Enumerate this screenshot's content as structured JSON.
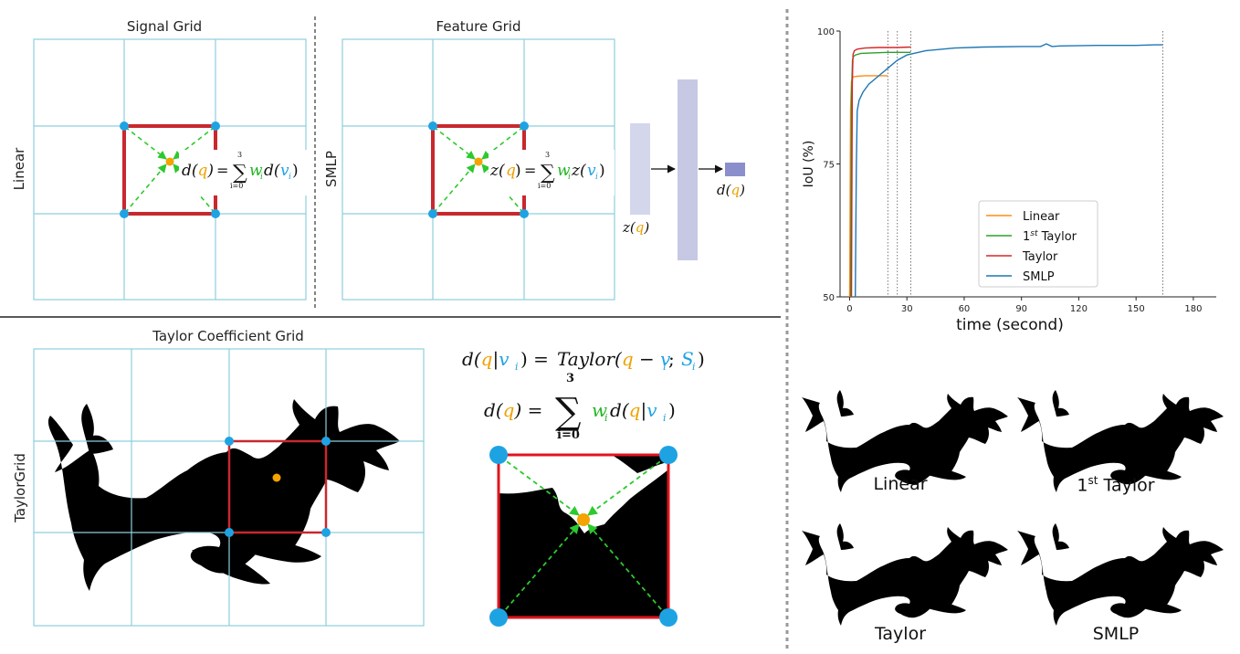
{
  "panels": {
    "signal_grid": {
      "title": "Signal Grid",
      "side_label": "Linear"
    },
    "feature_grid": {
      "title": "Feature Grid",
      "side_label": "SMLP",
      "mlp_input": "z",
      "mlp_output": "d"
    },
    "taylor_grid": {
      "title": "Taylor Coefficient Grid",
      "side_label": "TaylorGrid"
    }
  },
  "formulas": {
    "linear": {
      "lhs": "d",
      "arg": "q",
      "sum_top": "3",
      "sum_bottom": "i=0",
      "weight": "w",
      "sub": "i",
      "fn": "d",
      "var": "v"
    },
    "smlp": {
      "lhs": "z",
      "arg": "q",
      "sum_top": "3",
      "sum_bottom": "i=0",
      "weight": "w",
      "sub": "i",
      "fn": "z",
      "var": "v"
    },
    "taylor_line1": {
      "lhs": "d",
      "q": "q",
      "v": "v",
      "sub": "i",
      "rhs": "Taylor",
      "s": "S"
    },
    "taylor_line2": {
      "lhs": "d",
      "q": "q",
      "sum_top": "3",
      "sum_bottom": "i=0",
      "w": "w",
      "sub": "i",
      "fn": "d",
      "v": "v"
    }
  },
  "chart_data": {
    "type": "line",
    "xlabel": "time (second)",
    "ylabel": "IoU (%)",
    "xlim": [
      -5,
      192
    ],
    "ylim": [
      50,
      100
    ],
    "xticks": [
      "0",
      "30",
      "60",
      "90",
      "120",
      "150",
      "180"
    ],
    "yticks": [
      "50",
      "75",
      "100"
    ],
    "vlines": [
      20,
      25,
      32,
      164
    ],
    "legend_placement": "lower-center",
    "series": [
      {
        "name": "Linear",
        "color": "#ff8c1a",
        "x": [
          0,
          0.5,
          1,
          1.5,
          2,
          4,
          8,
          14,
          20
        ],
        "y": [
          50,
          85,
          90.5,
          91.2,
          91.4,
          91.5,
          91.6,
          91.6,
          91.6
        ]
      },
      {
        "name": "1st Taylor",
        "color": "#2ca02c",
        "x": [
          0.5,
          1,
          1.5,
          2,
          3,
          6,
          12,
          20,
          26,
          32
        ],
        "y": [
          50,
          88,
          94.5,
          95.2,
          95.5,
          95.8,
          95.9,
          96,
          96,
          96
        ]
      },
      {
        "name": "Taylor",
        "color": "#d62728",
        "x": [
          1,
          1.4,
          1.8,
          2.5,
          4,
          8,
          15,
          25,
          32
        ],
        "y": [
          50,
          90,
          95.6,
          96.3,
          96.6,
          96.8,
          96.9,
          96.9,
          97
        ]
      },
      {
        "name": "SMLP",
        "color": "#1f77b4",
        "x": [
          3,
          3.5,
          4,
          5,
          7,
          10,
          15,
          20,
          25,
          30,
          40,
          55,
          70,
          90,
          100,
          103,
          106,
          110,
          130,
          150,
          160,
          164
        ],
        "y": [
          50,
          74,
          85,
          87,
          88.5,
          90,
          91.5,
          93,
          94.5,
          95.5,
          96.3,
          96.8,
          97,
          97.1,
          97.1,
          97.6,
          97.1,
          97.2,
          97.3,
          97.3,
          97.4,
          97.4
        ]
      }
    ]
  },
  "shape_labels": {
    "linear": "Linear",
    "taylor1": "1",
    "taylor1_sup": "st",
    "taylor1_rest": " Taylor",
    "taylor": "Taylor",
    "smlp": "SMLP"
  },
  "colors": {
    "grid": "#8ecfdc",
    "cell": "#c8282e",
    "vertex": "#1ea3e2",
    "query": "#f4a300",
    "arrow": "#2dc92d",
    "formula_q": "#f0a000",
    "formula_v": "#1ea3e2",
    "formula_w": "#22b522"
  }
}
